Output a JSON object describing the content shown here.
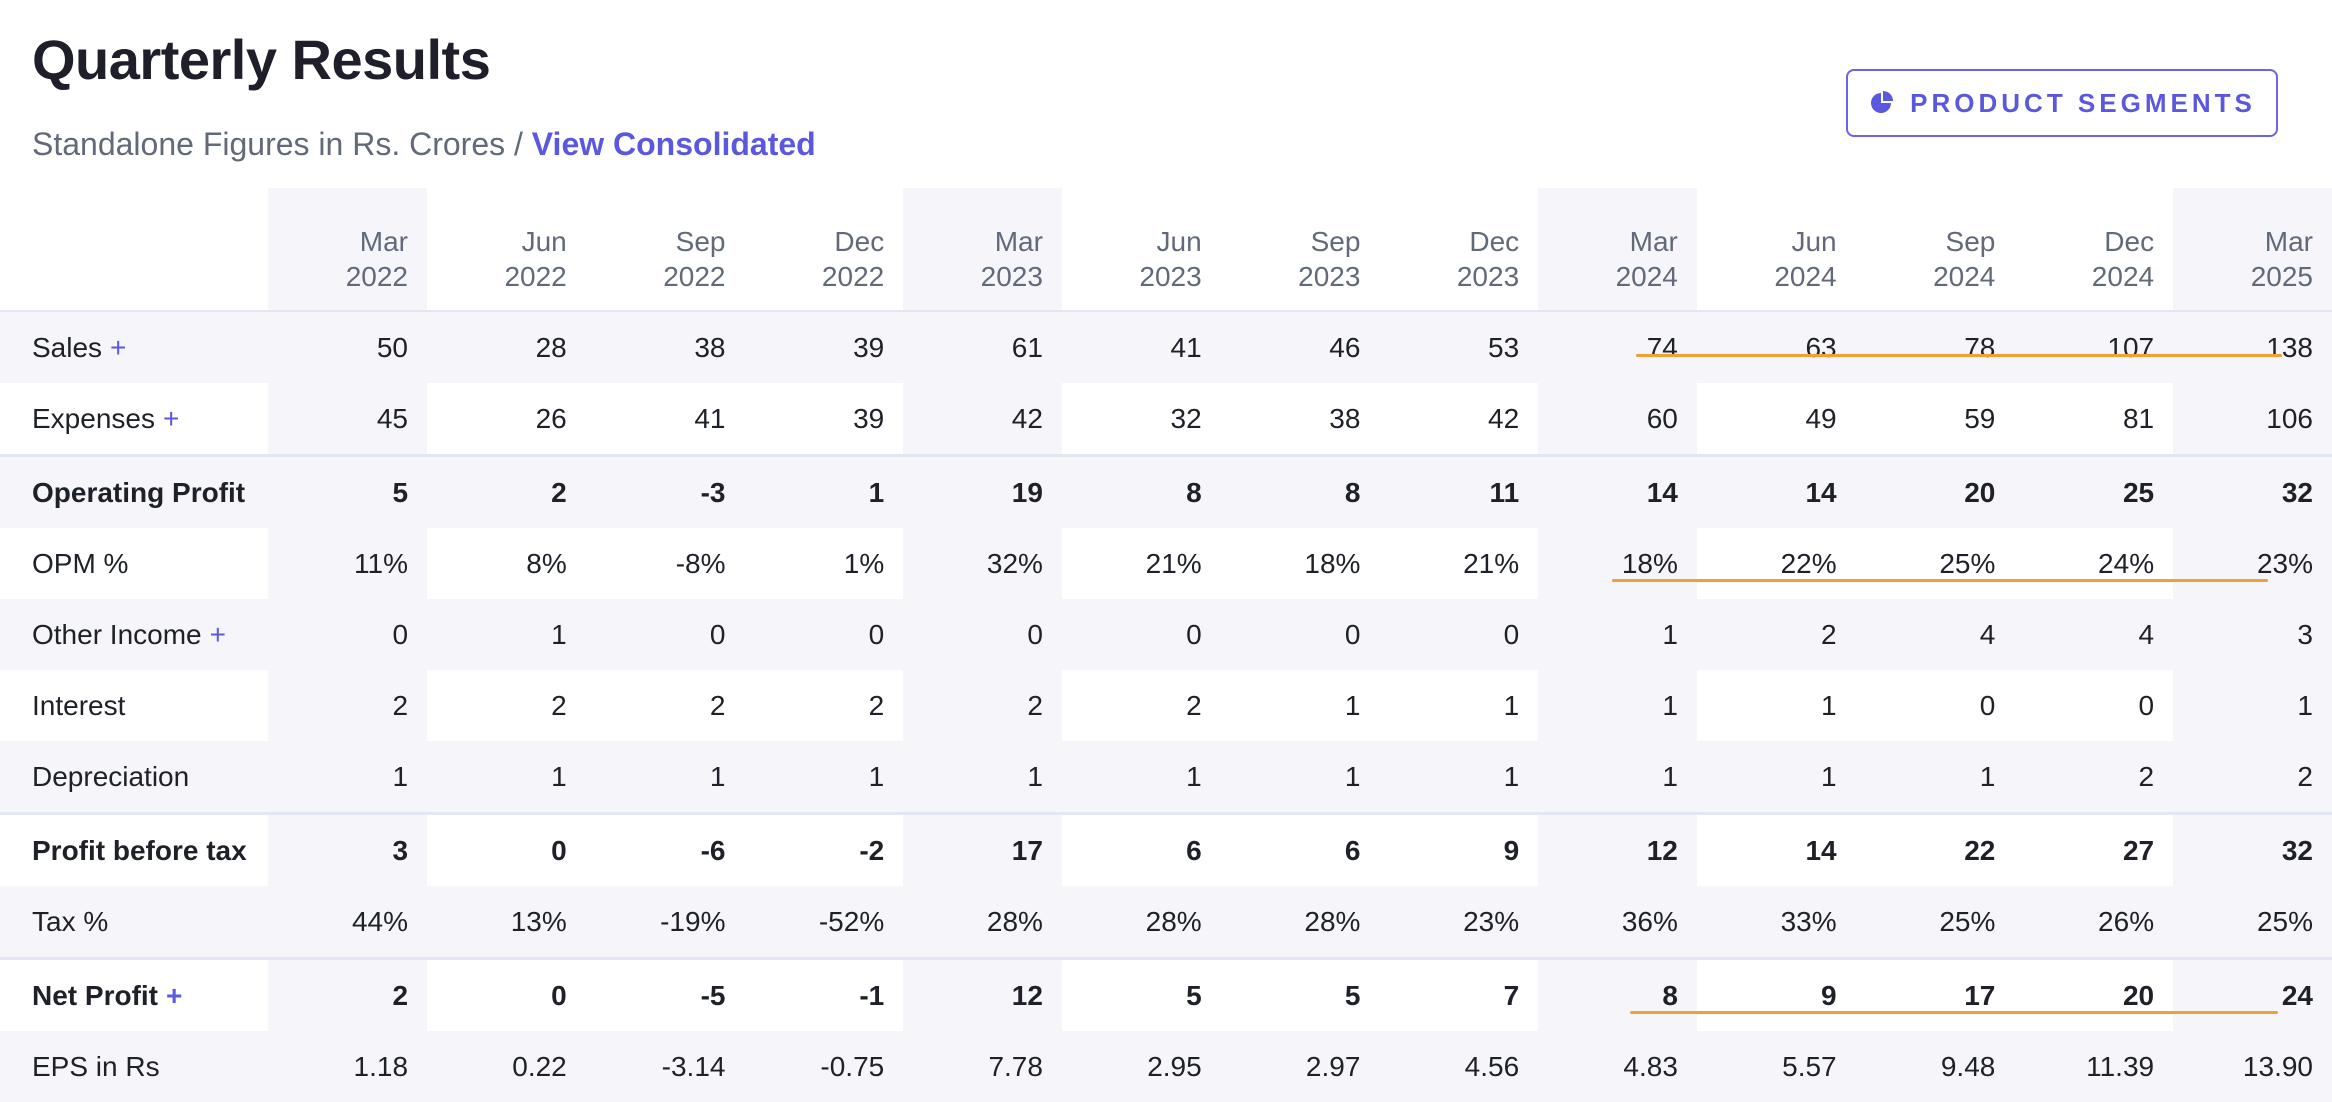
{
  "header": {
    "title": "Quarterly Results",
    "subtitle_prefix": "Standalone Figures in Rs. Crores / ",
    "view_consolidated": "View Consolidated",
    "segments_button": "PRODUCT SEGMENTS"
  },
  "colors": {
    "accent": "#5b58e0",
    "highlight_line": "#f0a034",
    "row_shade": "#f5f5fa"
  },
  "table": {
    "quarters": [
      {
        "month": "Mar",
        "year": "2022"
      },
      {
        "month": "Jun",
        "year": "2022"
      },
      {
        "month": "Sep",
        "year": "2022"
      },
      {
        "month": "Dec",
        "year": "2022"
      },
      {
        "month": "Mar",
        "year": "2023"
      },
      {
        "month": "Jun",
        "year": "2023"
      },
      {
        "month": "Sep",
        "year": "2023"
      },
      {
        "month": "Dec",
        "year": "2023"
      },
      {
        "month": "Mar",
        "year": "2024"
      },
      {
        "month": "Jun",
        "year": "2024"
      },
      {
        "month": "Sep",
        "year": "2024"
      },
      {
        "month": "Dec",
        "year": "2024"
      },
      {
        "month": "Mar",
        "year": "2025"
      }
    ],
    "rows": [
      {
        "label": "Sales",
        "expandable": true,
        "bold": false,
        "values": [
          "50",
          "28",
          "38",
          "39",
          "61",
          "41",
          "46",
          "53",
          "74",
          "63",
          "78",
          "107",
          "138"
        ]
      },
      {
        "label": "Expenses",
        "expandable": true,
        "bold": false,
        "values": [
          "45",
          "26",
          "41",
          "39",
          "42",
          "32",
          "38",
          "42",
          "60",
          "49",
          "59",
          "81",
          "106"
        ]
      },
      {
        "label": "Operating Profit",
        "expandable": false,
        "bold": true,
        "separator": true,
        "values": [
          "5",
          "2",
          "-3",
          "1",
          "19",
          "8",
          "8",
          "11",
          "14",
          "14",
          "20",
          "25",
          "32"
        ]
      },
      {
        "label": "OPM %",
        "expandable": false,
        "bold": false,
        "values": [
          "11%",
          "8%",
          "-8%",
          "1%",
          "32%",
          "21%",
          "18%",
          "21%",
          "18%",
          "22%",
          "25%",
          "24%",
          "23%"
        ]
      },
      {
        "label": "Other Income",
        "expandable": true,
        "bold": false,
        "values": [
          "0",
          "1",
          "0",
          "0",
          "0",
          "0",
          "0",
          "0",
          "1",
          "2",
          "4",
          "4",
          "3"
        ]
      },
      {
        "label": "Interest",
        "expandable": false,
        "bold": false,
        "values": [
          "2",
          "2",
          "2",
          "2",
          "2",
          "2",
          "1",
          "1",
          "1",
          "1",
          "0",
          "0",
          "1"
        ]
      },
      {
        "label": "Depreciation",
        "expandable": false,
        "bold": false,
        "values": [
          "1",
          "1",
          "1",
          "1",
          "1",
          "1",
          "1",
          "1",
          "1",
          "1",
          "1",
          "2",
          "2"
        ]
      },
      {
        "label": "Profit before tax",
        "expandable": false,
        "bold": true,
        "separator": true,
        "values": [
          "3",
          "0",
          "-6",
          "-2",
          "17",
          "6",
          "6",
          "9",
          "12",
          "14",
          "22",
          "27",
          "32"
        ]
      },
      {
        "label": "Tax %",
        "expandable": false,
        "bold": false,
        "values": [
          "44%",
          "13%",
          "-19%",
          "-52%",
          "28%",
          "28%",
          "28%",
          "23%",
          "36%",
          "33%",
          "25%",
          "26%",
          "25%"
        ]
      },
      {
        "label": "Net Profit",
        "expandable": true,
        "bold": true,
        "separator": true,
        "values": [
          "2",
          "0",
          "-5",
          "-1",
          "12",
          "5",
          "5",
          "7",
          "8",
          "9",
          "17",
          "20",
          "24"
        ]
      },
      {
        "label": "EPS in Rs",
        "expandable": false,
        "bold": false,
        "values": [
          "1.18",
          "0.22",
          "-3.14",
          "-0.75",
          "7.78",
          "2.95",
          "2.97",
          "4.56",
          "4.83",
          "5.57",
          "9.48",
          "11.39",
          "13.90"
        ]
      }
    ]
  }
}
